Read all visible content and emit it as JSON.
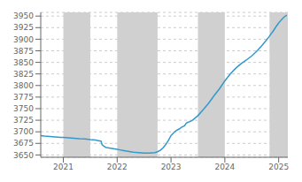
{
  "chart_data": {
    "type": "line",
    "color": "#3399cc",
    "grid": true,
    "xlim": [
      2020.58,
      2025.17
    ],
    "xticks": [
      2021,
      2022,
      2023,
      2024,
      2025
    ],
    "ylim": [
      3645,
      3958
    ],
    "yticks": [
      3650,
      3675,
      3700,
      3725,
      3750,
      3775,
      3800,
      3825,
      3850,
      3875,
      3900,
      3925,
      3950
    ],
    "bands": [
      [
        2021.0,
        2021.5
      ],
      [
        2022.0,
        2022.75
      ],
      [
        2023.5,
        2024.0
      ],
      [
        2024.83,
        2025.17
      ]
    ],
    "band_color": "#d0d0d0",
    "x": [
      2020.58,
      2020.65,
      2020.75,
      2020.85,
      2020.95,
      2021.0,
      2021.1,
      2021.2,
      2021.3,
      2021.4,
      2021.5,
      2021.6,
      2021.65,
      2021.7,
      2021.72,
      2021.75,
      2021.78,
      2021.8,
      2021.85,
      2021.9,
      2021.95,
      2022.0,
      2022.05,
      2022.1,
      2022.15,
      2022.2,
      2022.25,
      2022.3,
      2022.35,
      2022.4,
      2022.45,
      2022.5,
      2022.55,
      2022.6,
      2022.65,
      2022.7,
      2022.75,
      2022.8,
      2022.85,
      2022.9,
      2022.95,
      2023.0,
      2023.05,
      2023.1,
      2023.15,
      2023.2,
      2023.25,
      2023.28,
      2023.3,
      2023.35,
      2023.4,
      2023.5,
      2023.6,
      2023.7,
      2023.8,
      2023.9,
      2024.0,
      2024.1,
      2024.2,
      2024.3,
      2024.4,
      2024.5,
      2024.6,
      2024.7,
      2024.8,
      2024.85,
      2024.9,
      2024.95,
      2025.0,
      2025.05,
      2025.1,
      2025.15
    ],
    "values": [
      3692,
      3691,
      3690,
      3689,
      3688,
      3688,
      3687,
      3686,
      3685,
      3684.5,
      3683,
      3682,
      3681,
      3680,
      3672,
      3669,
      3667,
      3666,
      3665,
      3664,
      3663,
      3662,
      3661,
      3660,
      3659,
      3658,
      3657,
      3656,
      3655.5,
      3655,
      3654.5,
      3654,
      3654,
      3654,
      3654.5,
      3655,
      3657,
      3660,
      3665,
      3672,
      3681,
      3692,
      3698,
      3703,
      3706,
      3710,
      3713,
      3718,
      3720,
      3722,
      3725,
      3735,
      3748,
      3762,
      3778,
      3793,
      3810,
      3825,
      3837,
      3847,
      3855,
      3864,
      3875,
      3888,
      3902,
      3910,
      3918,
      3927,
      3935,
      3942,
      3948,
      3952
    ]
  }
}
